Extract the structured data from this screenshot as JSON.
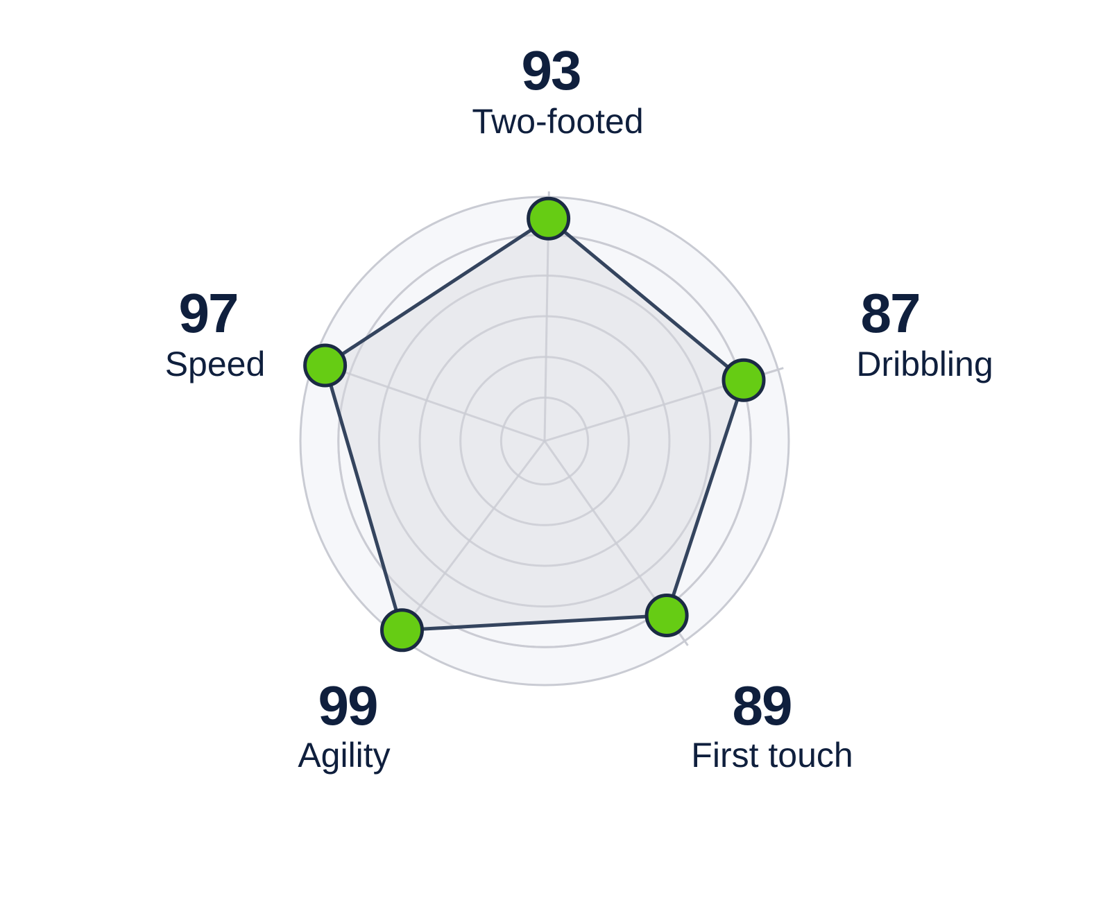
{
  "chart_data": {
    "type": "radar",
    "title": "",
    "categories": [
      "Two-footed",
      "Dribbling",
      "First touch",
      "Agility",
      "Speed"
    ],
    "values": [
      93,
      87,
      89,
      99,
      97
    ],
    "value_labels": [
      "93",
      "87",
      "89",
      "99",
      "97"
    ],
    "range": [
      0,
      100
    ],
    "rings": 5,
    "colors": {
      "marker_fill": "#66cc14",
      "marker_stroke": "#1b2a44",
      "line": "#34445e",
      "area_fill": "#e6e7eb",
      "grid": "#c9cbd3",
      "outer_bg": "#f6f7fa",
      "text": "#0f1f3d"
    }
  }
}
